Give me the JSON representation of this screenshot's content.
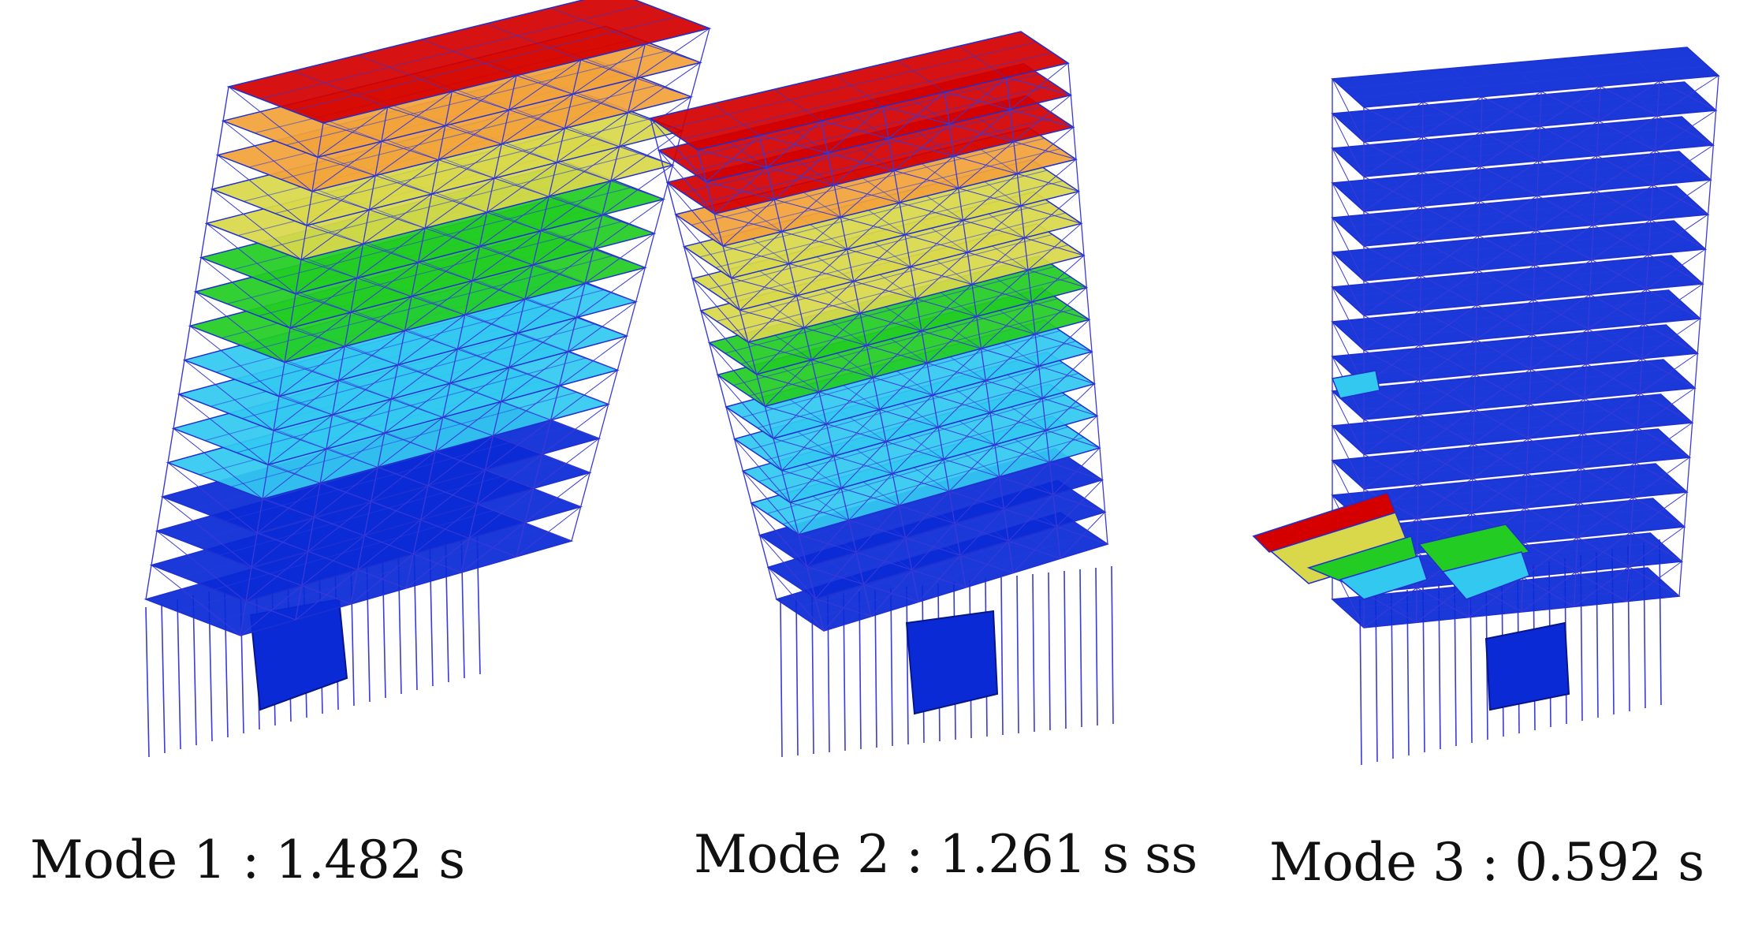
{
  "figure": {
    "panels": [
      {
        "id": "mode-1",
        "caption": "Mode 1 : 1.482 s"
      },
      {
        "id": "mode-2",
        "caption": "Mode 2 : 1.261 s ss"
      },
      {
        "id": "mode-3",
        "caption": "Mode 3 : 0.592 s"
      }
    ],
    "colors": {
      "high": "#d40000",
      "upper": "#f2a23a",
      "mid_upper": "#d8d84a",
      "middle": "#22cc22",
      "mid_lower": "#33c8f0",
      "low": "#0a2ad6",
      "frame_lines": "#3a3ad8"
    }
  }
}
